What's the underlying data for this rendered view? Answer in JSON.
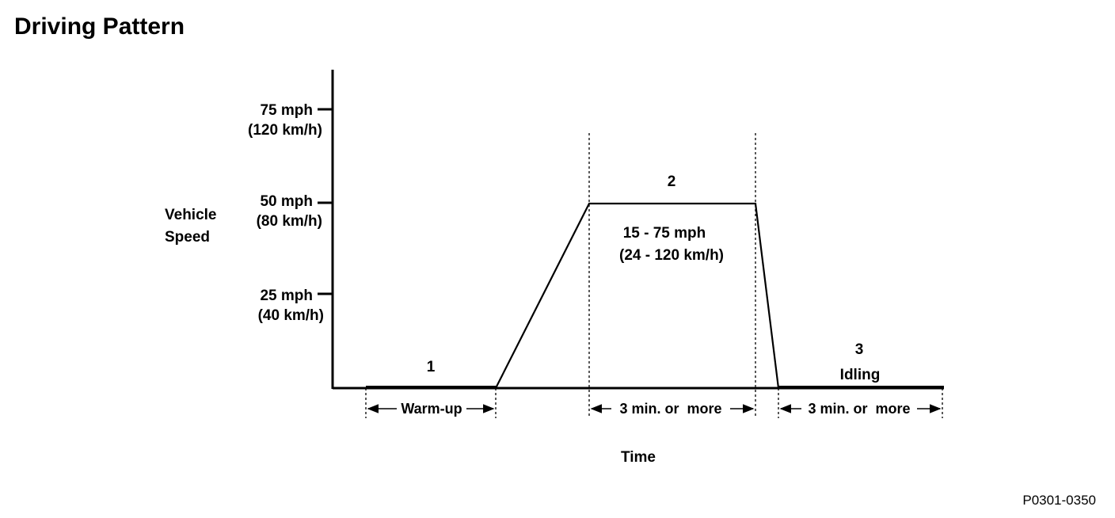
{
  "title": "Driving Pattern",
  "y_axis": {
    "label_line1": "Vehicle",
    "label_line2": "Speed",
    "ticks": [
      {
        "mph": "75 mph",
        "kmh": "(120 km/h)"
      },
      {
        "mph": "50 mph",
        "kmh": "(80 km/h)"
      },
      {
        "mph": "25 mph",
        "kmh": "(40 km/h)"
      }
    ]
  },
  "x_axis": {
    "label": "Time"
  },
  "phases": {
    "p1": {
      "number": "1",
      "duration": "Warm-up"
    },
    "p2": {
      "number": "2",
      "range_mph": "15 - 75 mph",
      "range_kmh": "(24 - 120 km/h)",
      "duration": "3 min. or  more"
    },
    "p3": {
      "number": "3",
      "name": "Idling",
      "duration": "3 min. or  more"
    }
  },
  "figure_id": "P0301-0350"
}
